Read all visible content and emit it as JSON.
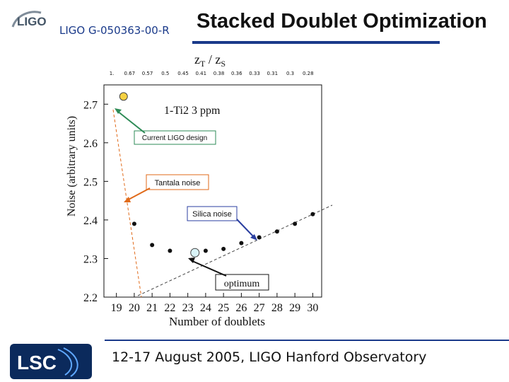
{
  "header": {
    "logo_text": "LIGO",
    "doc_id": "LIGO G-050363-00-R",
    "title": "Stacked Doublet Optimization"
  },
  "footer": {
    "logo_text": "LSC",
    "text": "12-17 August 2005, LIGO Hanford Observatory"
  },
  "chart_data": {
    "type": "scatter",
    "top_axis_label": "zT / zS",
    "top_axis_label_main": "z",
    "top_axis_label_sub1": "T",
    "top_axis_label_sep": " / z",
    "top_axis_label_sub2": "S",
    "top_ticks": [
      "1.",
      "0.67",
      "0.57",
      "0.5",
      "0.45",
      "0.41",
      "0.38",
      "0.36",
      "0.33",
      "0.31",
      "0.3",
      "0.28"
    ],
    "xlabel": "Number of doublets",
    "ylabel": "Noise (arbitrary units)",
    "x_ticks": [
      19,
      20,
      21,
      22,
      23,
      24,
      25,
      26,
      27,
      28,
      29,
      30
    ],
    "y_ticks": [
      2.2,
      2.3,
      2.4,
      2.5,
      2.6,
      2.7
    ],
    "xlim": [
      18.3,
      30.5
    ],
    "ylim": [
      2.2,
      2.75
    ],
    "series": [
      {
        "values": [
          [
            19.4,
            2.72
          ],
          [
            20,
            2.39
          ],
          [
            21,
            2.335
          ],
          [
            22,
            2.32
          ],
          [
            24,
            2.32
          ],
          [
            25,
            2.325
          ],
          [
            26,
            2.34
          ],
          [
            27,
            2.355
          ],
          [
            28,
            2.37
          ],
          [
            29,
            2.39
          ],
          [
            30,
            2.415
          ]
        ]
      }
    ],
    "highlight_current": [
      19.4,
      2.72
    ],
    "highlight_optimum": [
      23.4,
      2.315
    ],
    "annotation_garbled": "1-Ti2 3 ppm",
    "annotations": [
      {
        "text": "Current LIGO design",
        "color": "#2e8b57"
      },
      {
        "text": "Tantala noise",
        "color": "#e06a1a"
      },
      {
        "text": "Silica noise",
        "color": "#2b3fa0"
      },
      {
        "text": "optimum",
        "color": "#111111"
      }
    ]
  }
}
